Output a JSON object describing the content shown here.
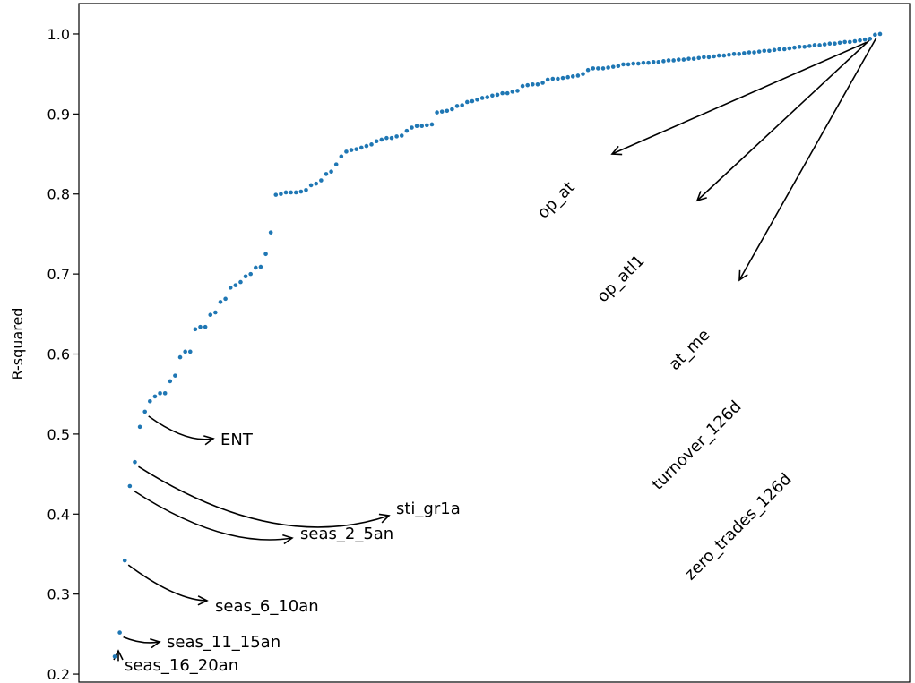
{
  "chart_data": {
    "type": "scatter",
    "ylabel": "R-squared",
    "ylim": [
      0.19,
      1.038
    ],
    "yticks": [
      0.2,
      0.3,
      0.4,
      0.5,
      0.6,
      0.7,
      0.8,
      0.9,
      1.0
    ],
    "ytick_labels": [
      "0.2",
      "0.3",
      "0.4",
      "0.5",
      "0.6",
      "0.7",
      "0.8",
      "0.9",
      "1.0"
    ],
    "xticks_visible": false,
    "grid": false,
    "point_color": "#1f77b4",
    "values": [
      0.222,
      0.252,
      0.342,
      0.435,
      0.465,
      0.509,
      0.528,
      0.541,
      0.547,
      0.551,
      0.551,
      0.566,
      0.573,
      0.596,
      0.603,
      0.603,
      0.631,
      0.634,
      0.634,
      0.649,
      0.652,
      0.665,
      0.669,
      0.683,
      0.686,
      0.69,
      0.697,
      0.7,
      0.708,
      0.709,
      0.725,
      0.752,
      0.799,
      0.8,
      0.802,
      0.802,
      0.802,
      0.803,
      0.805,
      0.811,
      0.813,
      0.817,
      0.825,
      0.828,
      0.837,
      0.847,
      0.853,
      0.855,
      0.856,
      0.858,
      0.86,
      0.862,
      0.866,
      0.868,
      0.87,
      0.87,
      0.872,
      0.873,
      0.879,
      0.883,
      0.885,
      0.885,
      0.886,
      0.887,
      0.902,
      0.903,
      0.904,
      0.906,
      0.91,
      0.911,
      0.915,
      0.916,
      0.918,
      0.92,
      0.921,
      0.923,
      0.924,
      0.926,
      0.926,
      0.928,
      0.929,
      0.935,
      0.936,
      0.937,
      0.937,
      0.939,
      0.943,
      0.944,
      0.944,
      0.945,
      0.946,
      0.947,
      0.948,
      0.95,
      0.955,
      0.957,
      0.957,
      0.957,
      0.958,
      0.959,
      0.96,
      0.962,
      0.962,
      0.963,
      0.963,
      0.964,
      0.964,
      0.965,
      0.965,
      0.966,
      0.967,
      0.967,
      0.968,
      0.968,
      0.969,
      0.969,
      0.97,
      0.971,
      0.971,
      0.972,
      0.973,
      0.973,
      0.974,
      0.975,
      0.975,
      0.976,
      0.977,
      0.977,
      0.978,
      0.979,
      0.979,
      0.98,
      0.981,
      0.981,
      0.982,
      0.983,
      0.984,
      0.984,
      0.985,
      0.986,
      0.986,
      0.987,
      0.988,
      0.988,
      0.989,
      0.99,
      0.99,
      0.991,
      0.992,
      0.993,
      0.994,
      0.999,
      1.0
    ],
    "annotations": [
      {
        "text": "ENT",
        "color": "#d62728",
        "index": 6,
        "rotation": 0
      },
      {
        "text": "sti_gr1a",
        "color": "#000000",
        "index": 4,
        "rotation": 0
      },
      {
        "text": "seas_2_5an",
        "color": "#000000",
        "index": 3,
        "rotation": 0
      },
      {
        "text": "seas_6_10an",
        "color": "#000000",
        "index": 2,
        "rotation": 0
      },
      {
        "text": "seas_11_15an",
        "color": "#000000",
        "index": 1,
        "rotation": 0
      },
      {
        "text": "seas_16_20an",
        "color": "#000000",
        "index": 0,
        "rotation": 0
      },
      {
        "text": "op_at",
        "color": "#000000",
        "index": 150,
        "rotation": -45
      },
      {
        "text": "op_atl1",
        "color": "#000000",
        "index": 151,
        "rotation": -45
      },
      {
        "text": "at_me",
        "color": "#000000",
        "index": 152,
        "rotation": -45
      },
      {
        "text": "turnover_126d",
        "color": "#000000",
        "index": 153,
        "rotation": -45
      },
      {
        "text": "zero_trades_126d",
        "color": "#000000",
        "index": 154,
        "rotation": -45
      }
    ]
  }
}
